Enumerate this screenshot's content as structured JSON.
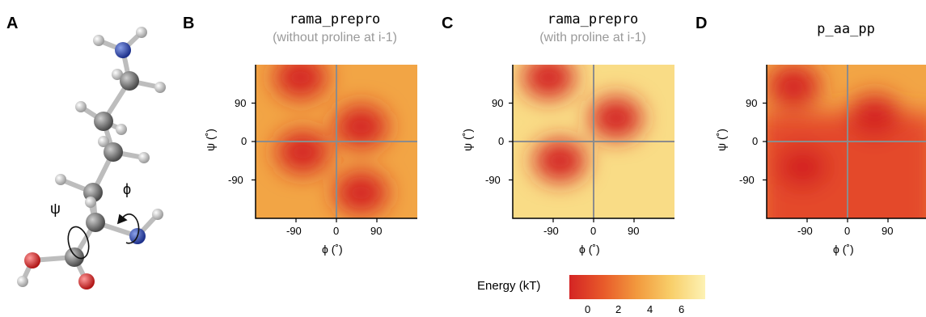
{
  "panels": {
    "A": {
      "letter": "A",
      "psi_label": "ψ",
      "phi_label": "ϕ"
    },
    "B": {
      "letter": "B",
      "title": "rama_prepro",
      "subtitle": "(without proline at i-1)"
    },
    "C": {
      "letter": "C",
      "title": "rama_prepro",
      "subtitle": "(with proline at i-1)"
    },
    "D": {
      "letter": "D",
      "title": "p_aa_pp"
    }
  },
  "axes": {
    "xlabel": "ϕ (˚)",
    "ylabel": "ψ (˚)",
    "xticks": [
      "-90",
      "0",
      "90"
    ],
    "yticks": [
      "90",
      "0",
      "-90"
    ]
  },
  "colorbar": {
    "label": "Energy (kT)",
    "ticks": [
      "0",
      "2",
      "4",
      "6"
    ],
    "colors": [
      "#d42424",
      "#e85a2a",
      "#f29a3e",
      "#f8cf6a",
      "#fdf2b4"
    ]
  },
  "chart_data": [
    {
      "type": "heatmap",
      "title": "rama_prepro",
      "subtitle": "(without proline at i-1)",
      "xlabel": "ϕ (˚)",
      "ylabel": "ψ (˚)",
      "xlim": [
        -180,
        180
      ],
      "ylim": [
        -180,
        180
      ],
      "energy_range": [
        0,
        7
      ],
      "minima": [
        {
          "phi": -80,
          "psi": 150
        },
        {
          "phi": -75,
          "psi": -25
        },
        {
          "phi": 55,
          "psi": 35
        },
        {
          "phi": 55,
          "psi": -120
        }
      ]
    },
    {
      "type": "heatmap",
      "title": "rama_prepro",
      "subtitle": "(with proline at i-1)",
      "xlabel": "ϕ (˚)",
      "ylabel": "ψ (˚)",
      "xlim": [
        -180,
        180
      ],
      "ylim": [
        -180,
        180
      ],
      "energy_range": [
        0,
        7
      ],
      "minima": [
        {
          "phi": -100,
          "psi": 150
        },
        {
          "phi": 50,
          "psi": 55
        },
        {
          "phi": -75,
          "psi": -45
        }
      ]
    },
    {
      "type": "heatmap",
      "title": "p_aa_pp",
      "xlabel": "ϕ (˚)",
      "ylabel": "ψ (˚)",
      "xlim": [
        -180,
        180
      ],
      "ylim": [
        -180,
        180
      ],
      "energy_range": [
        0,
        7
      ],
      "minima": [
        {
          "phi": -100,
          "psi": -60
        },
        {
          "phi": 60,
          "psi": 60
        },
        {
          "phi": -120,
          "psi": 130
        }
      ]
    }
  ]
}
